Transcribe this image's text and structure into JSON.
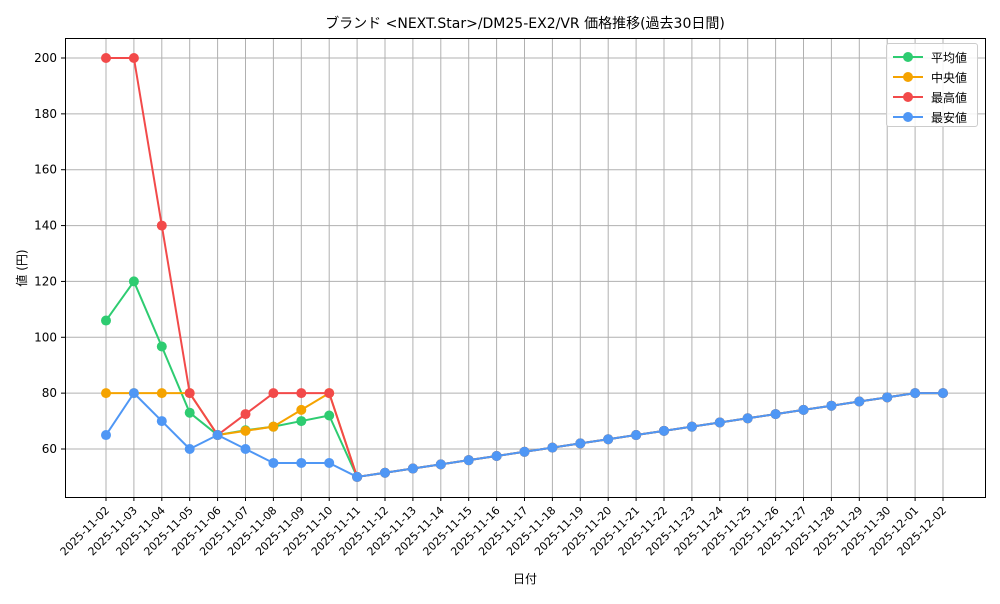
{
  "chart_data": {
    "type": "line",
    "title": "ブランド <NEXT.Star>/DM25-EX2/VR 価格推移(過去30日間)",
    "xlabel": "日付",
    "ylabel": "値 (円)",
    "ylim": [
      42,
      207
    ],
    "yticks": [
      60,
      80,
      100,
      120,
      140,
      160,
      180,
      200
    ],
    "grid": true,
    "legend_position": "upper right",
    "categories": [
      "2025-11-02",
      "2025-11-03",
      "2025-11-04",
      "2025-11-05",
      "2025-11-06",
      "2025-11-07",
      "2025-11-08",
      "2025-11-09",
      "2025-11-10",
      "2025-11-11",
      "2025-11-12",
      "2025-11-13",
      "2025-11-14",
      "2025-11-15",
      "2025-11-16",
      "2025-11-17",
      "2025-11-18",
      "2025-11-19",
      "2025-11-20",
      "2025-11-21",
      "2025-11-22",
      "2025-11-23",
      "2025-11-24",
      "2025-11-25",
      "2025-11-26",
      "2025-11-27",
      "2025-11-28",
      "2025-11-29",
      "2025-11-30",
      "2025-12-01",
      "2025-12-02"
    ],
    "series": [
      {
        "name": "平均値",
        "color": "#2ecc71",
        "values": [
          106,
          120,
          96.7,
          73,
          65,
          66.7,
          68,
          70,
          72,
          50,
          51.5,
          53,
          54.5,
          56,
          57.5,
          59,
          60.5,
          62,
          63.5,
          65,
          66.5,
          68,
          69.5,
          71,
          72.5,
          74,
          75.5,
          77,
          78.5,
          80,
          80
        ]
      },
      {
        "name": "中央値",
        "color": "#f5a300",
        "values": [
          80,
          80,
          80,
          80,
          65,
          66.5,
          68,
          74,
          80,
          50,
          51.5,
          53,
          54.5,
          56,
          57.5,
          59,
          60.5,
          62,
          63.5,
          65,
          66.5,
          68,
          69.5,
          71,
          72.5,
          74,
          75.5,
          77,
          78.5,
          80,
          80
        ]
      },
      {
        "name": "最高値",
        "color": "#f24a4a",
        "values": [
          200,
          200,
          140,
          80,
          65,
          72.5,
          80,
          80,
          80,
          50,
          51.5,
          53,
          54.5,
          56,
          57.5,
          59,
          60.5,
          62,
          63.5,
          65,
          66.5,
          68,
          69.5,
          71,
          72.5,
          74,
          75.5,
          77,
          78.5,
          80,
          80
        ]
      },
      {
        "name": "最安値",
        "color": "#4f97f5",
        "values": [
          65,
          80,
          70,
          60,
          65,
          60,
          55,
          55,
          55,
          50,
          51.5,
          53,
          54.5,
          56,
          57.5,
          59,
          60.5,
          62,
          63.5,
          65,
          66.5,
          68,
          69.5,
          71,
          72.5,
          74,
          75.5,
          77,
          78.5,
          80,
          80
        ]
      }
    ]
  }
}
